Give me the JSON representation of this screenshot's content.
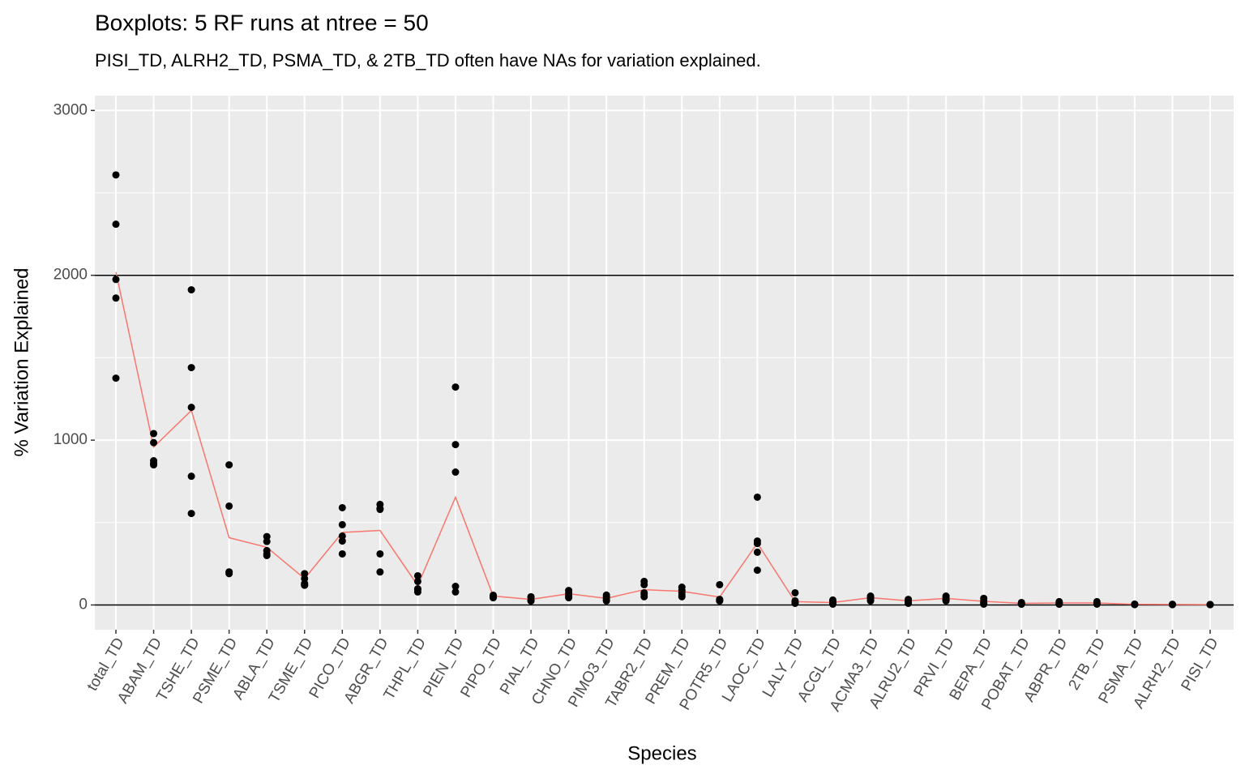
{
  "chart_data": {
    "type": "scatter",
    "title": "Boxplots: 5 RF runs at ntree = 50",
    "subtitle": "PISI_TD, ALRH2_TD, PSMA_TD, & 2TB_TD often have NAs for variation explained.",
    "x_label": "Species",
    "y_label": "% Variation Explained",
    "categories": [
      "total_TD",
      "ABAM_TD",
      "TSHE_TD",
      "PSME_TD",
      "ABLA_TD",
      "TSME_TD",
      "PICO_TD",
      "ABGR_TD",
      "THPL_TD",
      "PIEN_TD",
      "PIPO_TD",
      "PIAL_TD",
      "CHNO_TD",
      "PIMO3_TD",
      "TABR2_TD",
      "PREM_TD",
      "POTR5_TD",
      "LAOC_TD",
      "LALY_TD",
      "ACGL_TD",
      "ACMA3_TD",
      "ALRU2_TD",
      "PRVI_TD",
      "BEPA_TD",
      "POBAT_TD",
      "ABPR_TD",
      "2TB_TD",
      "PSMA_TD",
      "ALRH2_TD",
      "PISI_TD"
    ],
    "points": [
      [
        2609,
        2310,
        1975,
        1862,
        1376
      ],
      [
        1040,
        985,
        875,
        860,
        850
      ],
      [
        1912,
        1440,
        1199,
        781,
        555
      ],
      [
        850,
        600,
        200,
        190,
        200
      ],
      [
        415,
        385,
        330,
        310,
        300
      ],
      [
        190,
        160,
        130,
        120,
        120
      ],
      [
        590,
        487,
        418,
        388,
        310
      ],
      [
        610,
        585,
        580,
        310,
        200
      ],
      [
        177,
        143,
        98,
        93,
        79
      ],
      [
        1322,
        973,
        806,
        113,
        79
      ],
      [
        59,
        54,
        50,
        45,
        44
      ],
      [
        50,
        45,
        30,
        25,
        25
      ],
      [
        88,
        74,
        59,
        50,
        44
      ],
      [
        60,
        50,
        40,
        30,
        25
      ],
      [
        143,
        123,
        74,
        64,
        50
      ],
      [
        108,
        88,
        74,
        59,
        50
      ],
      [
        123,
        34,
        30,
        25,
        25
      ],
      [
        654,
        388,
        373,
        320,
        211
      ],
      [
        74,
        25,
        20,
        15,
        10
      ],
      [
        30,
        20,
        15,
        10,
        5
      ],
      [
        54,
        44,
        40,
        30,
        25
      ],
      [
        34,
        25,
        20,
        15,
        10
      ],
      [
        54,
        44,
        34,
        30,
        25
      ],
      [
        40,
        25,
        15,
        10,
        5
      ],
      [
        15,
        10,
        10,
        5,
        5
      ],
      [
        20,
        15,
        10,
        5,
        5
      ],
      [
        20,
        10,
        5,
        null,
        null
      ],
      [
        5,
        4,
        2,
        null,
        null
      ],
      [
        4,
        3,
        2,
        null,
        null
      ],
      [
        3,
        2,
        2,
        null,
        null
      ]
    ],
    "point_color": "#000000",
    "line_values": [
      2020,
      958,
      1180,
      408,
      350,
      160,
      440,
      452,
      118,
      654,
      54,
      34,
      68,
      40,
      93,
      83,
      48,
      375,
      20,
      15,
      44,
      25,
      40,
      22,
      10,
      12,
      12,
      4,
      3,
      2
    ],
    "line_color": "#F8766D",
    "hlines": [
      0,
      2000
    ],
    "ylim": [
      -150,
      3090
    ],
    "yticks": [
      0,
      1000,
      2000,
      3000
    ],
    "grid": true
  }
}
